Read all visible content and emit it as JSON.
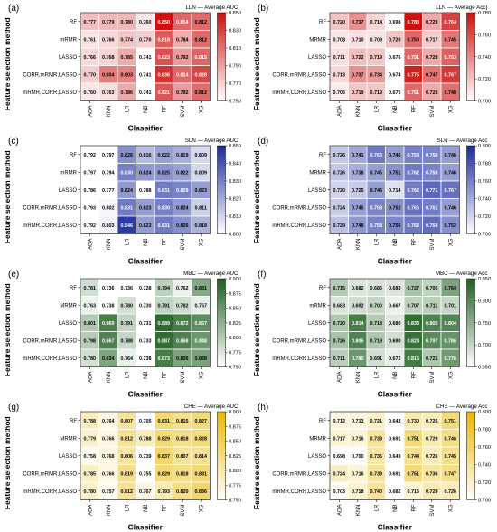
{
  "figure": {
    "ylabel": "Feature selection method",
    "xlabel": "Classifier"
  },
  "chart_data": [
    {
      "type": "heatmap",
      "panel": "(a)",
      "title": "LLN — Average AUC",
      "x": [
        "ADA",
        "KNN",
        "LR",
        "NB",
        "RF",
        "SVM",
        "XG"
      ],
      "y": [
        "RF",
        "mRMR",
        "LASSO",
        "CORR,mRMR,LASSO",
        "mRMR,CORR,LASSO"
      ],
      "values": [
        [
          0.777,
          0.779,
          0.78,
          0.76,
          0.85,
          0.814,
          0.812
        ],
        [
          0.761,
          0.766,
          0.774,
          0.77,
          0.818,
          0.784,
          0.812
        ],
        [
          0.766,
          0.768,
          0.785,
          0.741,
          0.823,
          0.792,
          0.815
        ],
        [
          0.77,
          0.804,
          0.803,
          0.741,
          0.836,
          0.814,
          0.828
        ],
        [
          0.76,
          0.763,
          0.786,
          0.741,
          0.821,
          0.792,
          0.812
        ]
      ],
      "colorbar": {
        "range": [
          0.75,
          0.85
        ],
        "ticks": [
          "0.850",
          "0.830",
          "0.810",
          "0.790",
          "0.770",
          "0.750"
        ]
      },
      "colormap": [
        "#ffffff",
        "#cc1111"
      ]
    },
    {
      "type": "heatmap",
      "panel": "(b)",
      "title": "LLN — Average Acc)",
      "x": [
        "ADA",
        "KNN",
        "LR",
        "NB",
        "RF",
        "SVM",
        "XG"
      ],
      "y": [
        "RF",
        "MRMR",
        "LASSO",
        "CORR,mRMR,LASSO",
        "mRMR,CORR,LASSO"
      ],
      "values": [
        [
          0.72,
          0.737,
          0.714,
          0.698,
          0.78,
          0.729,
          0.764
        ],
        [
          0.708,
          0.71,
          0.709,
          0.72,
          0.75,
          0.717,
          0.745
        ],
        [
          0.711,
          0.722,
          0.719,
          0.676,
          0.751,
          0.728,
          0.753
        ],
        [
          0.713,
          0.737,
          0.734,
          0.674,
          0.775,
          0.747,
          0.767
        ],
        [
          0.706,
          0.719,
          0.719,
          0.675,
          0.751,
          0.728,
          0.748
        ]
      ],
      "colorbar": {
        "range": [
          0.7,
          0.78
        ],
        "ticks": [
          "0.780",
          "0.760",
          "0.740",
          "0.720",
          "0.700"
        ]
      },
      "colormap": [
        "#ffffff",
        "#cc1111"
      ]
    },
    {
      "type": "heatmap",
      "panel": "(c)",
      "title": "SLN — Average AUC",
      "x": [
        "ADA",
        "KNN",
        "LR",
        "NB",
        "RF",
        "SVM",
        "XG"
      ],
      "y": [
        "RF",
        "mRMR",
        "LASSO",
        "CORR,mRMR,LASSO",
        "mRMR,CORR,LASSO"
      ],
      "values": [
        [
          0.792,
          0.797,
          0.826,
          0.816,
          0.822,
          0.819,
          0.809
        ],
        [
          0.797,
          0.794,
          0.83,
          0.824,
          0.825,
          0.822,
          0.809
        ],
        [
          0.786,
          0.777,
          0.824,
          0.788,
          0.831,
          0.829,
          0.823
        ],
        [
          0.793,
          0.802,
          0.831,
          0.823,
          0.83,
          0.824,
          0.811
        ],
        [
          0.792,
          0.803,
          0.846,
          0.823,
          0.831,
          0.826,
          0.818
        ]
      ],
      "colorbar": {
        "range": [
          0.8,
          0.85
        ],
        "ticks": [
          "0.850",
          "0.840",
          "0.830",
          "0.820",
          "0.810",
          "0.800"
        ]
      },
      "colormap": [
        "#ffffff",
        "#1a2a9c"
      ]
    },
    {
      "type": "heatmap",
      "panel": "(d)",
      "title": "SLN — Average Acc",
      "x": [
        "ADA",
        "KNN",
        "LR",
        "NB",
        "RF",
        "SVM",
        "XG"
      ],
      "y": [
        "RF",
        "MRMR",
        "LASSO",
        "CORR,mRMR,LASSO",
        "mRMR,CORR,LASSO"
      ],
      "values": [
        [
          0.726,
          0.741,
          0.763,
          0.746,
          0.759,
          0.758,
          0.746
        ],
        [
          0.726,
          0.738,
          0.745,
          0.751,
          0.762,
          0.758,
          0.746
        ],
        [
          0.72,
          0.725,
          0.746,
          0.714,
          0.762,
          0.771,
          0.767
        ],
        [
          0.724,
          0.745,
          0.758,
          0.752,
          0.766,
          0.761,
          0.746
        ],
        [
          0.729,
          0.748,
          0.758,
          0.756,
          0.763,
          0.768,
          0.752
        ]
      ],
      "colorbar": {
        "range": [
          0.7,
          0.8
        ],
        "ticks": [
          "0.800",
          "0.780",
          "0.760",
          "0.740",
          "0.720",
          "0.700"
        ]
      },
      "colormap": [
        "#ffffff",
        "#1a2a9c"
      ]
    },
    {
      "type": "heatmap",
      "panel": "(e)",
      "title": "MBC — Average AUC",
      "x": [
        "ADA",
        "KNN",
        "LR",
        "NB",
        "RF",
        "SVM",
        "XG"
      ],
      "y": [
        "RF",
        "MRMR",
        "LASSO",
        "CORR,mRMR,LASSO",
        "mRMR,CORR,LASSO"
      ],
      "values": [
        [
          0.781,
          0.736,
          0.736,
          0.728,
          0.794,
          0.762,
          0.831
        ],
        [
          0.763,
          0.738,
          0.78,
          0.73,
          0.791,
          0.782,
          0.767
        ],
        [
          0.801,
          0.869,
          0.791,
          0.731,
          0.889,
          0.872,
          0.857
        ],
        [
          0.798,
          0.867,
          0.788,
          0.733,
          0.887,
          0.868,
          0.848
        ],
        [
          0.78,
          0.834,
          0.764,
          0.738,
          0.873,
          0.836,
          0.838
        ]
      ],
      "colorbar": {
        "range": [
          0.75,
          0.9
        ],
        "ticks": [
          "0.900",
          "0.875",
          "0.850",
          "0.825",
          "0.800",
          "0.775",
          "0.750"
        ]
      },
      "colormap": [
        "#ffffff",
        "#1e5e20"
      ]
    },
    {
      "type": "heatmap",
      "panel": "(f)",
      "title": "MBC — Average Acc",
      "x": [
        "ADA",
        "KNN",
        "LR",
        "NB",
        "RF",
        "SVM",
        "XG"
      ],
      "y": [
        "RF",
        "mRMR",
        "LASSO",
        "CORR,mRMR,LASSO",
        "mRMR,CORR,LASSO"
      ],
      "values": [
        [
          0.715,
          0.682,
          0.686,
          0.683,
          0.727,
          0.706,
          0.764
        ],
        [
          0.683,
          0.692,
          0.7,
          0.667,
          0.707,
          0.711,
          0.701
        ],
        [
          0.72,
          0.814,
          0.718,
          0.68,
          0.833,
          0.805,
          0.804
        ],
        [
          0.726,
          0.806,
          0.719,
          0.69,
          0.828,
          0.797,
          0.786
        ],
        [
          0.711,
          0.78,
          0.691,
          0.672,
          0.815,
          0.721,
          0.776
        ]
      ],
      "colorbar": {
        "range": [
          0.65,
          0.85
        ],
        "ticks": [
          "0.850",
          "0.800",
          "0.750",
          "0.700",
          "0.650"
        ]
      },
      "colormap": [
        "#ffffff",
        "#1e5e20"
      ]
    },
    {
      "type": "heatmap",
      "panel": "(g)",
      "title": "CHE — Average AUC",
      "x": [
        "ADA",
        "KNN",
        "LR",
        "NB",
        "RF",
        "SVM",
        "XG"
      ],
      "y": [
        "RF",
        "MRMR",
        "LASSO",
        "CORR,mRMR,LASSO",
        "mRMR,CORR,LASSO"
      ],
      "values": [
        [
          0.788,
          0.764,
          0.807,
          0.705,
          0.831,
          0.815,
          0.827
        ],
        [
          0.779,
          0.766,
          0.812,
          0.788,
          0.829,
          0.818,
          0.828
        ],
        [
          0.758,
          0.768,
          0.806,
          0.739,
          0.837,
          0.807,
          0.814
        ],
        [
          0.785,
          0.766,
          0.819,
          0.755,
          0.829,
          0.818,
          0.831
        ],
        [
          0.78,
          0.757,
          0.812,
          0.767,
          0.793,
          0.82,
          0.836
        ]
      ],
      "colorbar": {
        "range": [
          0.75,
          0.9
        ],
        "ticks": [
          "0.900",
          "0.875",
          "0.850",
          "0.825",
          "0.800",
          "0.775",
          "0.750"
        ]
      },
      "colormap": [
        "#ffffff",
        "#e8b800"
      ]
    },
    {
      "type": "heatmap",
      "panel": "(h)",
      "title": "CHE — Average Acc",
      "x": [
        "ADA",
        "KNN",
        "LR",
        "NB",
        "RF",
        "SVM",
        "XG"
      ],
      "y": [
        "RF",
        "MRMR",
        "LASSO",
        "CORR,mRMR,LASSO",
        "mRMR,CORR,LASSO"
      ],
      "values": [
        [
          0.712,
          0.713,
          0.721,
          0.643,
          0.73,
          0.726,
          0.751
        ],
        [
          0.717,
          0.716,
          0.739,
          0.691,
          0.751,
          0.729,
          0.746
        ],
        [
          0.698,
          0.7,
          0.736,
          0.649,
          0.744,
          0.726,
          0.745
        ],
        [
          0.724,
          0.716,
          0.739,
          0.691,
          0.751,
          0.736,
          0.747
        ],
        [
          0.703,
          0.718,
          0.74,
          0.682,
          0.716,
          0.729,
          0.726
        ]
      ],
      "colorbar": {
        "range": [
          0.7,
          0.8
        ],
        "ticks": [
          "0.800",
          "0.780",
          "0.760",
          "0.740",
          "0.720",
          "0.700"
        ]
      },
      "colormap": [
        "#ffffff",
        "#e8b800"
      ]
    }
  ]
}
